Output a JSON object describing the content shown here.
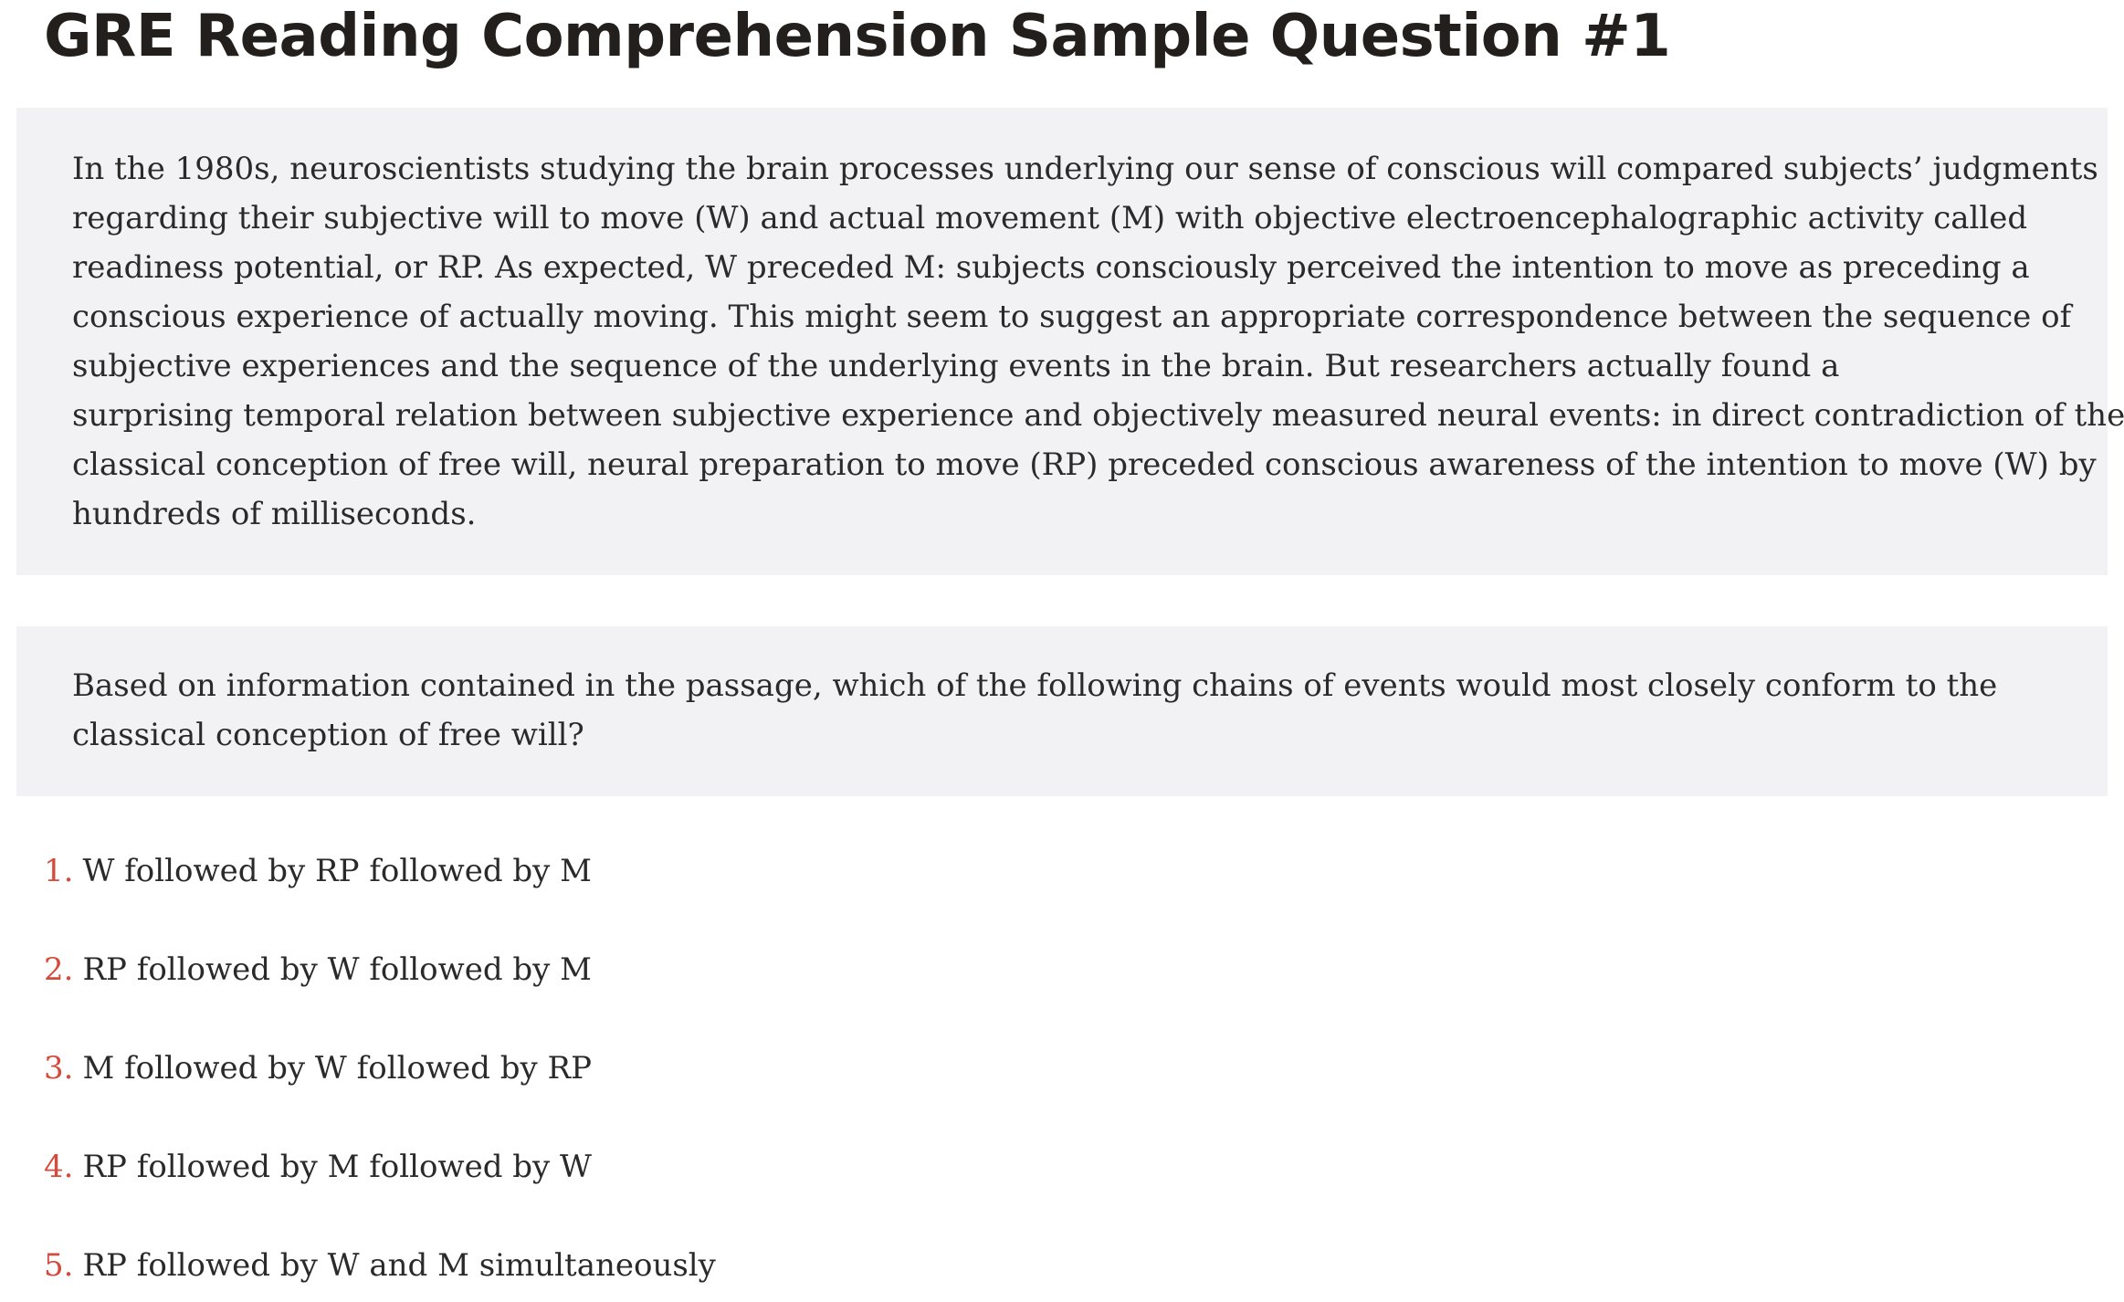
{
  "title": "GRE Reading Comprehension Sample Question #1",
  "passage": {
    "lines": [
      "In the 1980s, neuroscientists studying the brain processes underlying our sense of conscious will compared subjects’ judgments",
      "regarding their subjective will to move (W) and actual movement (M) with objective electroencephalographic activity called",
      "readiness potential, or RP. As expected, W preceded M: subjects consciously perceived the intention to move as preceding a",
      "conscious experience of actually moving. This might seem to suggest an appropriate correspondence between the sequence of",
      "subjective experiences and the sequence of the underlying events in the brain. But researchers actually found a",
      "surprising temporal relation between subjective experience and objectively measured neural events: in direct contradiction of the",
      "classical conception of free will, neural preparation to move (RP) preceded conscious awareness of the intention to move (W) by",
      "hundreds of milliseconds."
    ]
  },
  "question": {
    "text": "Based on information contained in the passage, which of the following chains of events would most closely conform to the classical conception of free will?"
  },
  "choices": [
    {
      "number": "1.",
      "text": "W followed by RP followed by M"
    },
    {
      "number": "2.",
      "text": "RP followed by W followed by M"
    },
    {
      "number": "3.",
      "text": "M followed by W followed by RP"
    },
    {
      "number": "4.",
      "text": "RP followed by M followed by W"
    },
    {
      "number": "5.",
      "text": "RP followed by W and M simultaneously"
    }
  ],
  "colors": {
    "choice_number": "#d64a3c",
    "panel_background": "#f2f2f4",
    "title_text": "#231f1c"
  }
}
